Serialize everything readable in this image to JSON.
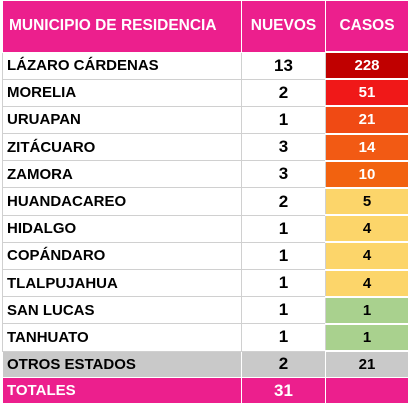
{
  "table": {
    "headers": {
      "municipio": "MUNICIPIO DE RESIDENCIA",
      "nuevos": "NUEVOS",
      "casos": "CASOS"
    },
    "rows": [
      {
        "municipio": "LÁZARO CÁRDENAS",
        "nuevos": "13",
        "casos": "228",
        "casos_color": "#c00000",
        "casos_text": "#ffffff"
      },
      {
        "municipio": "MORELIA",
        "nuevos": "2",
        "casos": "51",
        "casos_color": "#f01818",
        "casos_text": "#ffffff"
      },
      {
        "municipio": "URUAPAN",
        "nuevos": "1",
        "casos": "21",
        "casos_color": "#f04a14",
        "casos_text": "#ffffff"
      },
      {
        "municipio": "ZITÁCUARO",
        "nuevos": "3",
        "casos": "14",
        "casos_color": "#f25a14",
        "casos_text": "#ffffff"
      },
      {
        "municipio": "ZAMORA",
        "nuevos": "3",
        "casos": "10",
        "casos_color": "#f2620f",
        "casos_text": "#ffffff"
      },
      {
        "municipio": "HUANDACAREO",
        "nuevos": "2",
        "casos": "5",
        "casos_color": "#fcd56a",
        "casos_text": "#000000"
      },
      {
        "municipio": "HIDALGO",
        "nuevos": "1",
        "casos": "4",
        "casos_color": "#fcd56a",
        "casos_text": "#000000"
      },
      {
        "municipio": "COPÁNDARO",
        "nuevos": "1",
        "casos": "4",
        "casos_color": "#fcd56a",
        "casos_text": "#000000"
      },
      {
        "municipio": "TLALPUJAHUA",
        "nuevos": "1",
        "casos": "4",
        "casos_color": "#fcd56a",
        "casos_text": "#000000"
      },
      {
        "municipio": "SAN LUCAS",
        "nuevos": "1",
        "casos": "1",
        "casos_color": "#a9d18e",
        "casos_text": "#000000"
      },
      {
        "municipio": "TANHUATO",
        "nuevos": "1",
        "casos": "1",
        "casos_color": "#a9d18e",
        "casos_text": "#000000"
      }
    ],
    "otros": {
      "municipio": "OTROS ESTADOS",
      "nuevos": "2",
      "casos": "21"
    },
    "totales": {
      "municipio": "TOTALES",
      "nuevos": "31",
      "casos": ""
    }
  }
}
